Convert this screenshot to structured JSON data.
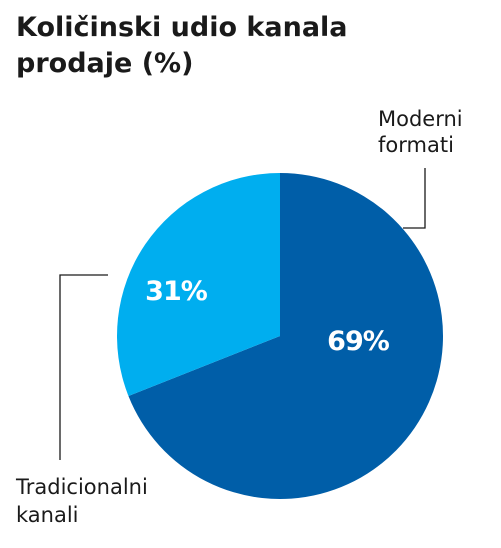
{
  "chart_data": {
    "type": "pie",
    "title": [
      "Količinski udio kanala",
      "prodaje (%)"
    ],
    "slices": [
      {
        "label_lines": [
          "Moderni",
          "formati"
        ],
        "value": 69,
        "value_label": "69%",
        "color": "#005ea8"
      },
      {
        "label_lines": [
          "Tradicionalni",
          "kanali"
        ],
        "value": 31,
        "value_label": "31%",
        "color": "#00aeef"
      }
    ],
    "start": "12 o'clock",
    "direction": "clockwise",
    "legend": "callouts"
  }
}
